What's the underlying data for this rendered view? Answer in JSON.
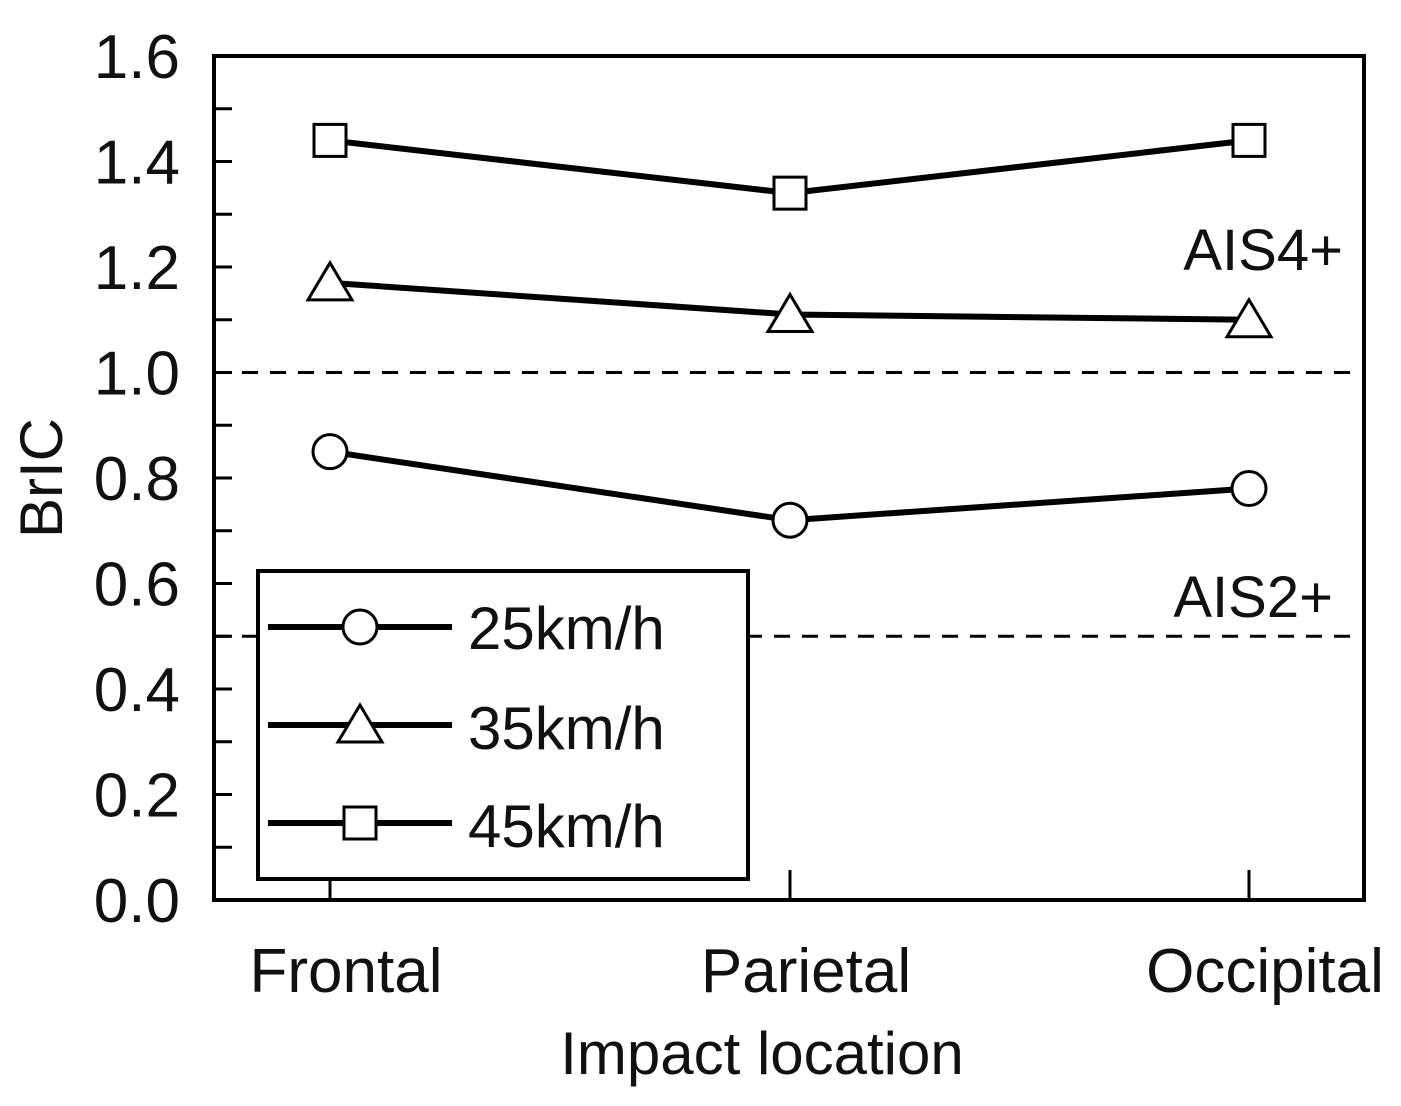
{
  "chart_data": {
    "type": "line",
    "title": "",
    "xlabel": "Impact location",
    "ylabel": "BrIC",
    "categories": [
      "Frontal",
      "Parietal",
      "Occipital"
    ],
    "ylim": [
      0,
      1.6
    ],
    "yticks": [
      "0.0",
      "0.2",
      "0.4",
      "0.6",
      "0.8",
      "1.0",
      "1.2",
      "1.4",
      "1.6"
    ],
    "grid": false,
    "series": [
      {
        "name": "25km/h",
        "marker": "circle",
        "values": [
          0.85,
          0.72,
          0.78
        ]
      },
      {
        "name": "35km/h",
        "marker": "triangle",
        "values": [
          1.17,
          1.11,
          1.1
        ]
      },
      {
        "name": "45km/h",
        "marker": "square",
        "values": [
          1.44,
          1.34,
          1.44
        ]
      }
    ],
    "thresholds": [
      {
        "label": "AIS4+",
        "value": 1.0
      },
      {
        "label": "AIS2+",
        "value": 0.5
      }
    ],
    "legend_position": "bottom-left",
    "colors": {
      "line": "#000000",
      "marker_fill": "#ffffff"
    }
  }
}
